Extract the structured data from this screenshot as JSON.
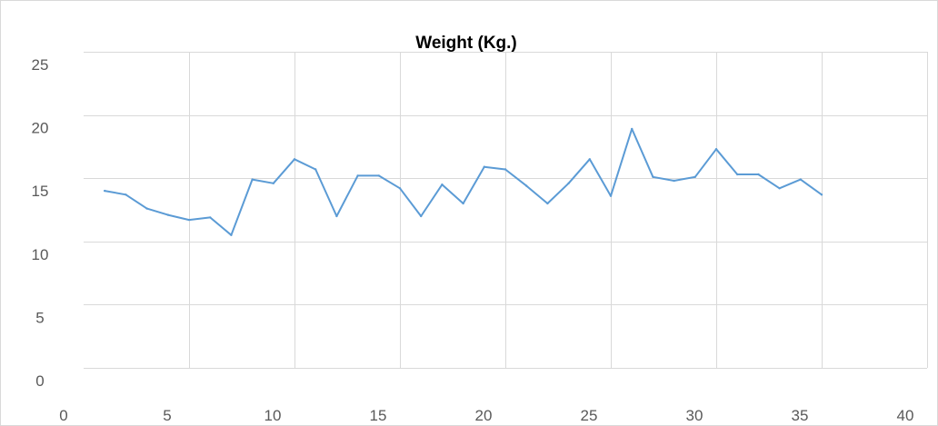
{
  "chart_data": {
    "type": "line",
    "title": "Weight (Kg.)",
    "xlabel": "",
    "ylabel": "",
    "xlim": [
      0,
      40
    ],
    "ylim": [
      0,
      25
    ],
    "x_ticks": [
      0,
      5,
      10,
      15,
      20,
      25,
      30,
      35,
      40
    ],
    "y_ticks": [
      0,
      5,
      10,
      15,
      20,
      25
    ],
    "grid": true,
    "legend": "none",
    "colors": {
      "series": "#5b9bd5",
      "grid": "#d9d9d9",
      "border": "#d9d9d9",
      "text": "#595959"
    },
    "series": [
      {
        "x": [
          1,
          2,
          3,
          4,
          5,
          6,
          7,
          8,
          9,
          10,
          11,
          12,
          13,
          14,
          15,
          16,
          17,
          18,
          19,
          20,
          21,
          22,
          23,
          24,
          25,
          26,
          27,
          28,
          29,
          30,
          31,
          32,
          33,
          34,
          35
        ],
        "values": [
          14.0,
          13.7,
          12.6,
          12.1,
          11.7,
          11.9,
          10.5,
          14.9,
          14.6,
          16.5,
          15.7,
          12.0,
          15.2,
          15.2,
          14.2,
          12.0,
          14.5,
          13.0,
          15.9,
          15.7,
          14.4,
          13.0,
          14.6,
          16.5,
          13.6,
          18.9,
          15.1,
          14.8,
          15.1,
          17.3,
          15.3,
          15.3,
          14.2,
          14.9,
          13.7
        ]
      }
    ]
  }
}
